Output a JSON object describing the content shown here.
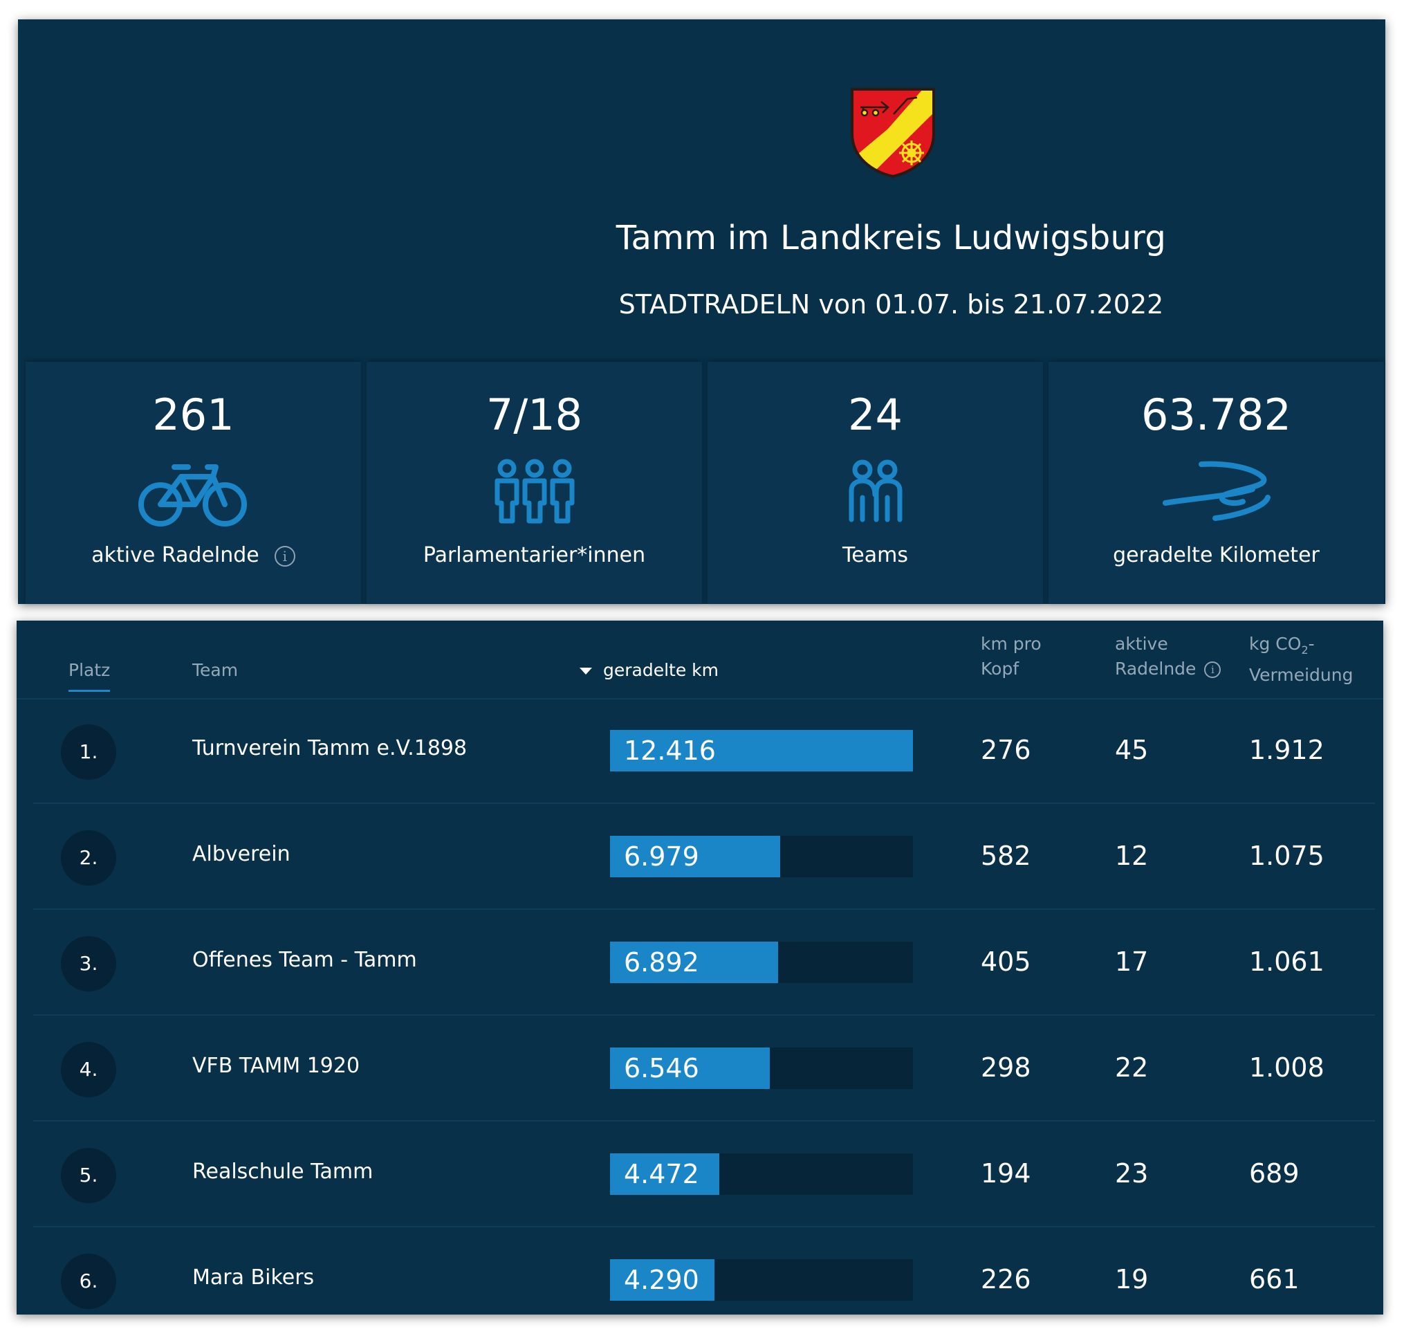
{
  "header": {
    "title": "Tamm im Landkreis Ludwigsburg",
    "subtitle": "STADTRADELN von 01.07. bis 21.07.2022",
    "crest_colors": {
      "red": "#e0171f",
      "yellow": "#f6e21c",
      "outline": "#2a1a12"
    }
  },
  "stats": [
    {
      "value": "261",
      "label": "aktive Radelnde",
      "icon": "bicycle-icon",
      "has_info": true
    },
    {
      "value": "7/18",
      "label": "Parlamentarier*innen",
      "icon": "three-people-icon",
      "has_info": false
    },
    {
      "value": "24",
      "label": "Teams",
      "icon": "two-people-icon",
      "has_info": false
    },
    {
      "value": "63.782",
      "label": "geradelte Kilometer",
      "icon": "winding-road-icon",
      "has_info": false
    }
  ],
  "table": {
    "columns": {
      "platz": "Platz",
      "team": "Team",
      "km": "geradelte km",
      "km_pro_kopf_1": "km pro",
      "km_pro_kopf_2": "Kopf",
      "aktive_1": "aktive",
      "aktive_2": "Radelnde",
      "co2_1": "kg CO",
      "co2_sub": "2",
      "co2_dash": "-",
      "co2_2": "Vermeidung"
    },
    "max_km": 12416,
    "rows": [
      {
        "rank": "1.",
        "team": "Turnverein Tamm e.V.1898",
        "km": "12.416",
        "km_value": 12416,
        "km_pro_kopf": "276",
        "aktive": "45",
        "co2": "1.912"
      },
      {
        "rank": "2.",
        "team": "Albverein",
        "km": "6.979",
        "km_value": 6979,
        "km_pro_kopf": "582",
        "aktive": "12",
        "co2": "1.075"
      },
      {
        "rank": "3.",
        "team": "Offenes Team - Tamm",
        "km": "6.892",
        "km_value": 6892,
        "km_pro_kopf": "405",
        "aktive": "17",
        "co2": "1.061"
      },
      {
        "rank": "4.",
        "team": "VFB TAMM 1920",
        "km": "6.546",
        "km_value": 6546,
        "km_pro_kopf": "298",
        "aktive": "22",
        "co2": "1.008"
      },
      {
        "rank": "5.",
        "team": "Realschule Tamm",
        "km": "4.472",
        "km_value": 4472,
        "km_pro_kopf": "194",
        "aktive": "23",
        "co2": "689"
      },
      {
        "rank": "6.",
        "team": "Mara Bikers",
        "km": "4.290",
        "km_value": 4290,
        "km_pro_kopf": "226",
        "aktive": "19",
        "co2": "661"
      }
    ]
  },
  "colors": {
    "card_bg": "#083049",
    "accent": "#1a86c7",
    "muted_text": "#95a8b8"
  }
}
